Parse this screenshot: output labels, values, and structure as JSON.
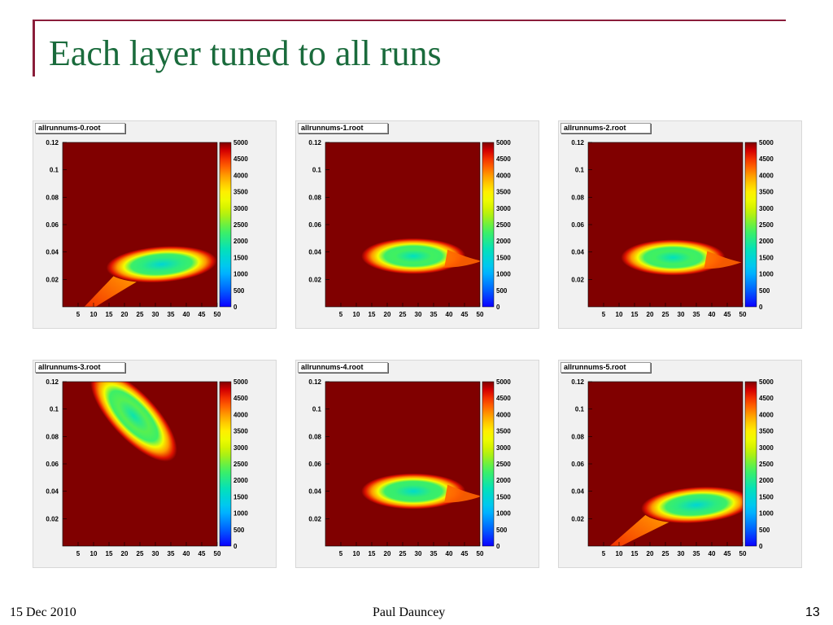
{
  "slide": {
    "title": "Each layer tuned to all runs",
    "footer_date": "15 Dec 2010",
    "footer_author": "Paul Dauncey",
    "page_number": "13"
  },
  "colors": {
    "accent_line": "#8a1d3a",
    "title_color": "#1a6b3c",
    "background_level": "#800000"
  },
  "chart_data": [
    {
      "type": "heatmap",
      "title": "allrunnums-0.root",
      "x_ticks": [
        5,
        10,
        15,
        20,
        25,
        30,
        35,
        40,
        45,
        50
      ],
      "y_ticks": [
        0.02,
        0.04,
        0.06,
        0.08,
        0.1,
        0.12
      ],
      "xlim": [
        0,
        50
      ],
      "ylim": [
        0,
        0.12
      ],
      "z_ticks": [
        0,
        500,
        1000,
        1500,
        2000,
        2500,
        3000,
        3500,
        4000,
        4500,
        5000
      ],
      "zlim": [
        0,
        5000
      ],
      "shape": "tail",
      "minimum": {
        "x": 32,
        "y": 0.031,
        "z": 1500
      }
    },
    {
      "type": "heatmap",
      "title": "allrunnums-1.root",
      "x_ticks": [
        5,
        10,
        15,
        20,
        25,
        30,
        35,
        40,
        45,
        50
      ],
      "y_ticks": [
        0.02,
        0.04,
        0.06,
        0.08,
        0.1,
        0.12
      ],
      "xlim": [
        0,
        50
      ],
      "ylim": [
        0,
        0.12
      ],
      "z_ticks": [
        0,
        500,
        1000,
        1500,
        2000,
        2500,
        3000,
        3500,
        4000,
        4500,
        5000
      ],
      "zlim": [
        0,
        5000
      ],
      "shape": "teardrop",
      "minimum": {
        "x": 29,
        "y": 0.037,
        "z": 1700
      }
    },
    {
      "type": "heatmap",
      "title": "allrunnums-2.root",
      "x_ticks": [
        5,
        10,
        15,
        20,
        25,
        30,
        35,
        40,
        45,
        50
      ],
      "y_ticks": [
        0.02,
        0.04,
        0.06,
        0.08,
        0.1,
        0.12
      ],
      "xlim": [
        0,
        50
      ],
      "ylim": [
        0,
        0.12
      ],
      "z_ticks": [
        0,
        500,
        1000,
        1500,
        2000,
        2500,
        3000,
        3500,
        4000,
        4500,
        5000
      ],
      "zlim": [
        0,
        5000
      ],
      "shape": "teardrop",
      "minimum": {
        "x": 28,
        "y": 0.036,
        "z": 1700
      }
    },
    {
      "type": "heatmap",
      "title": "allrunnums-3.root",
      "x_ticks": [
        5,
        10,
        15,
        20,
        25,
        30,
        35,
        40,
        45,
        50
      ],
      "y_ticks": [
        0.02,
        0.04,
        0.06,
        0.08,
        0.1,
        0.12
      ],
      "xlim": [
        0,
        50
      ],
      "ylim": [
        0,
        0.12
      ],
      "z_ticks": [
        0,
        500,
        1000,
        1500,
        2000,
        2500,
        3000,
        3500,
        4000,
        4500,
        5000
      ],
      "zlim": [
        0,
        5000
      ],
      "shape": "tilted",
      "minimum": {
        "x": 23,
        "y": 0.095,
        "z": 1800
      }
    },
    {
      "type": "heatmap",
      "title": "allrunnums-4.root",
      "x_ticks": [
        5,
        10,
        15,
        20,
        25,
        30,
        35,
        40,
        45,
        50
      ],
      "y_ticks": [
        0.02,
        0.04,
        0.06,
        0.08,
        0.1,
        0.12
      ],
      "xlim": [
        0,
        50
      ],
      "ylim": [
        0,
        0.12
      ],
      "z_ticks": [
        0,
        500,
        1000,
        1500,
        2000,
        2500,
        3000,
        3500,
        4000,
        4500,
        5000
      ],
      "zlim": [
        0,
        5000
      ],
      "shape": "teardrop",
      "minimum": {
        "x": 29,
        "y": 0.04,
        "z": 1600
      }
    },
    {
      "type": "heatmap",
      "title": "allrunnums-5.root",
      "x_ticks": [
        5,
        10,
        15,
        20,
        25,
        30,
        35,
        40,
        45,
        50
      ],
      "y_ticks": [
        0.02,
        0.04,
        0.06,
        0.08,
        0.1,
        0.12
      ],
      "xlim": [
        0,
        50
      ],
      "ylim": [
        0,
        0.12
      ],
      "z_ticks": [
        0,
        500,
        1000,
        1500,
        2000,
        2500,
        3000,
        3500,
        4000,
        4500,
        5000
      ],
      "zlim": [
        0,
        5000
      ],
      "shape": "tail",
      "minimum": {
        "x": 35,
        "y": 0.03,
        "z": 1500
      }
    }
  ]
}
